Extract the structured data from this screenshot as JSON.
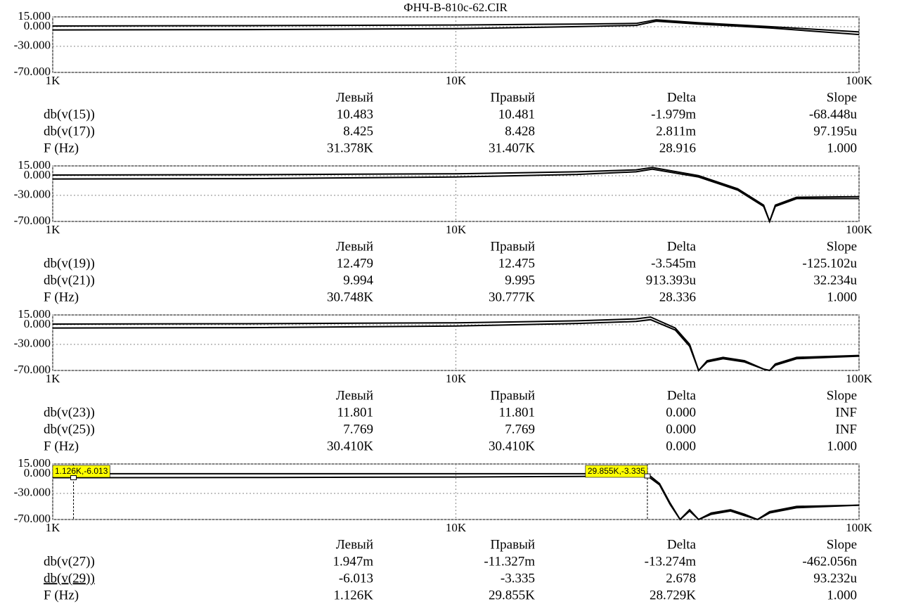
{
  "title": "ФНЧ-В-810с-62.CIR",
  "chart_data": [
    {
      "type": "line",
      "xlog": true,
      "grid": true,
      "xlim": [
        1000,
        100000
      ],
      "ylim": [
        -70,
        15
      ],
      "xticks": [
        {
          "value": 1000,
          "label": "1K"
        },
        {
          "value": 10000,
          "label": "10K"
        },
        {
          "value": 100000,
          "label": "100K"
        }
      ],
      "yticks": [
        {
          "value": 15,
          "label": "15.000"
        },
        {
          "value": 0,
          "label": "0.000"
        },
        {
          "value": -30,
          "label": "-30.000"
        },
        {
          "value": -70,
          "label": "-70.000"
        }
      ],
      "x": [
        1000,
        3000,
        10000,
        20000,
        28000,
        31400,
        40000,
        60000,
        100000
      ],
      "series": [
        {
          "name": "db(v(15))",
          "color": "#000000",
          "values": [
            1,
            1.5,
            2.5,
            4,
            5,
            10.5,
            6,
            0,
            -8
          ]
        },
        {
          "name": "db(v(17))",
          "color": "#000000",
          "values": [
            -5,
            -4.5,
            -3,
            0,
            2,
            8.4,
            4,
            -2,
            -12
          ]
        }
      ],
      "cursor_table": {
        "columns": [
          "Левый",
          "Правый",
          "Delta",
          "Slope"
        ],
        "rows": [
          [
            "10.483",
            "10.481",
            "-1.979m",
            "-68.448u"
          ],
          [
            "8.425",
            "8.428",
            "2.811m",
            "97.195u"
          ]
        ],
        "freq_label": "F (Hz)",
        "freq_row": [
          "31.378K",
          "31.407K",
          "28.916",
          "1.000"
        ]
      }
    },
    {
      "type": "line",
      "xlog": true,
      "grid": true,
      "xlim": [
        1000,
        100000
      ],
      "ylim": [
        -70,
        15
      ],
      "xticks": [
        {
          "value": 1000,
          "label": "1K"
        },
        {
          "value": 10000,
          "label": "10K"
        },
        {
          "value": 100000,
          "label": "100K"
        }
      ],
      "yticks": [
        {
          "value": 15,
          "label": "15.000"
        },
        {
          "value": 0,
          "label": "0.000"
        },
        {
          "value": -30,
          "label": "-30.000"
        },
        {
          "value": -70,
          "label": "-70.000"
        }
      ],
      "x": [
        1000,
        3000,
        10000,
        20000,
        28000,
        30700,
        40000,
        50000,
        58000,
        60000,
        62000,
        70000,
        100000
      ],
      "series": [
        {
          "name": "db(v(19))",
          "color": "#000000",
          "values": [
            1,
            1.5,
            3,
            6,
            9,
            12.5,
            0,
            -20,
            -45,
            -70,
            -45,
            -33,
            -32
          ]
        },
        {
          "name": "db(v(21))",
          "color": "#000000",
          "values": [
            -5,
            -4.5,
            -2,
            2,
            6,
            10,
            -2,
            -22,
            -47,
            -70,
            -47,
            -35,
            -35
          ]
        }
      ],
      "cursor_table": {
        "columns": [
          "Левый",
          "Правый",
          "Delta",
          "Slope"
        ],
        "rows": [
          [
            "12.479",
            "12.475",
            "-3.545m",
            "-125.102u"
          ],
          [
            "9.994",
            "9.995",
            "913.393u",
            "32.234u"
          ]
        ],
        "freq_label": "F (Hz)",
        "freq_row": [
          "30.748K",
          "30.777K",
          "28.336",
          "1.000"
        ]
      }
    },
    {
      "type": "line",
      "xlog": true,
      "grid": true,
      "xlim": [
        1000,
        100000
      ],
      "ylim": [
        -70,
        15
      ],
      "xticks": [
        {
          "value": 1000,
          "label": "1K"
        },
        {
          "value": 10000,
          "label": "10K"
        },
        {
          "value": 100000,
          "label": "100K"
        }
      ],
      "yticks": [
        {
          "value": 15,
          "label": "15.000"
        },
        {
          "value": 0,
          "label": "0.000"
        },
        {
          "value": -30,
          "label": "-30.000"
        },
        {
          "value": -70,
          "label": "-70.000"
        }
      ],
      "x": [
        1000,
        3000,
        10000,
        20000,
        28000,
        30400,
        35000,
        38000,
        40000,
        42000,
        46000,
        52000,
        58000,
        60000,
        62000,
        70000,
        100000
      ],
      "series": [
        {
          "name": "db(v(23))",
          "color": "#000000",
          "values": [
            1,
            1.5,
            3,
            6,
            9,
            11.8,
            -5,
            -30,
            -70,
            -55,
            -50,
            -55,
            -68,
            -70,
            -60,
            -50,
            -47
          ]
        },
        {
          "name": "db(v(25))",
          "color": "#000000",
          "values": [
            -5,
            -4.5,
            -2,
            2,
            5,
            7.8,
            -8,
            -33,
            -70,
            -57,
            -52,
            -57,
            -68,
            -70,
            -62,
            -52,
            -48
          ]
        }
      ],
      "cursor_table": {
        "columns": [
          "Левый",
          "Правый",
          "Delta",
          "Slope"
        ],
        "rows": [
          [
            "11.801",
            "11.801",
            "0.000",
            "INF"
          ],
          [
            "7.769",
            "7.769",
            "0.000",
            "INF"
          ]
        ],
        "freq_label": "F (Hz)",
        "freq_row": [
          "30.410K",
          "30.410K",
          "0.000",
          "1.000"
        ]
      }
    },
    {
      "type": "line",
      "xlog": true,
      "grid": true,
      "xlim": [
        1000,
        100000
      ],
      "ylim": [
        -70,
        15
      ],
      "xticks": [
        {
          "value": 1000,
          "label": "1K"
        },
        {
          "value": 10000,
          "label": "10K"
        },
        {
          "value": 100000,
          "label": "100K"
        }
      ],
      "yticks": [
        {
          "value": 15,
          "label": "15.000"
        },
        {
          "value": 0,
          "label": "0.000"
        },
        {
          "value": -30,
          "label": "-30.000"
        },
        {
          "value": -70,
          "label": "-70.000"
        }
      ],
      "x": [
        1000,
        1126,
        3000,
        10000,
        20000,
        29855,
        32000,
        34000,
        36000,
        38000,
        40000,
        43000,
        48000,
        52000,
        56000,
        60000,
        70000,
        100000
      ],
      "series": [
        {
          "name": "db(v(27))",
          "color": "#000000",
          "values": [
            0,
            0,
            0,
            0,
            0,
            0,
            -15,
            -45,
            -70,
            -55,
            -70,
            -60,
            -55,
            -62,
            -70,
            -58,
            -50,
            -48
          ]
        },
        {
          "name": "db(v(29))",
          "color": "#000000",
          "values": [
            -6,
            -6.013,
            -5.8,
            -5,
            -4,
            -3.335,
            -17,
            -47,
            -70,
            -57,
            -70,
            -62,
            -57,
            -64,
            -70,
            -60,
            -52,
            -48
          ]
        }
      ],
      "annotations": [
        {
          "text": "1.126K,-6.013",
          "x": 1126,
          "y": -6.013
        },
        {
          "text": "29.855K,-3.335",
          "x": 29855,
          "y": -3.335
        }
      ],
      "cursor_table": {
        "columns": [
          "Левый",
          "Правый",
          "Delta",
          "Slope"
        ],
        "rows": [
          [
            "1.947m",
            "-11.327m",
            "-13.274m",
            "-462.056n"
          ],
          [
            "-6.013",
            "-3.335",
            "2.678",
            "93.232u"
          ]
        ],
        "freq_label": "F (Hz)",
        "freq_row": [
          "1.126K",
          "29.855K",
          "28.729K",
          "1.000"
        ]
      }
    }
  ]
}
